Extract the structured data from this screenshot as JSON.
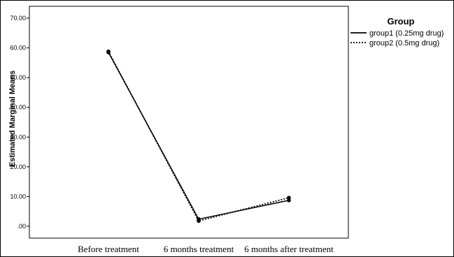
{
  "chart_data": {
    "type": "line",
    "categories": [
      "Before treatment",
      "6 months  treatment",
      "6 months after treatment"
    ],
    "ylabel": "Estimated Marginal Means",
    "ylim": [
      -4,
      74
    ],
    "yticks": [
      ".00",
      "10.00",
      "20.00",
      "30.00",
      "40.00",
      "50.00",
      "60.00",
      "70.00"
    ],
    "ytick_values": [
      0,
      10,
      20,
      30,
      40,
      50,
      60,
      70
    ],
    "grid": false,
    "legend": {
      "title": "Group",
      "placement": "right"
    },
    "series": [
      {
        "name": "group1 (0.25mg drug)",
        "values": [
          58.5,
          2.4,
          8.7
        ],
        "style": "solid"
      },
      {
        "name": "group2 (0.5mg drug)",
        "values": [
          58.8,
          1.8,
          9.6
        ],
        "style": "dotted"
      }
    ]
  }
}
